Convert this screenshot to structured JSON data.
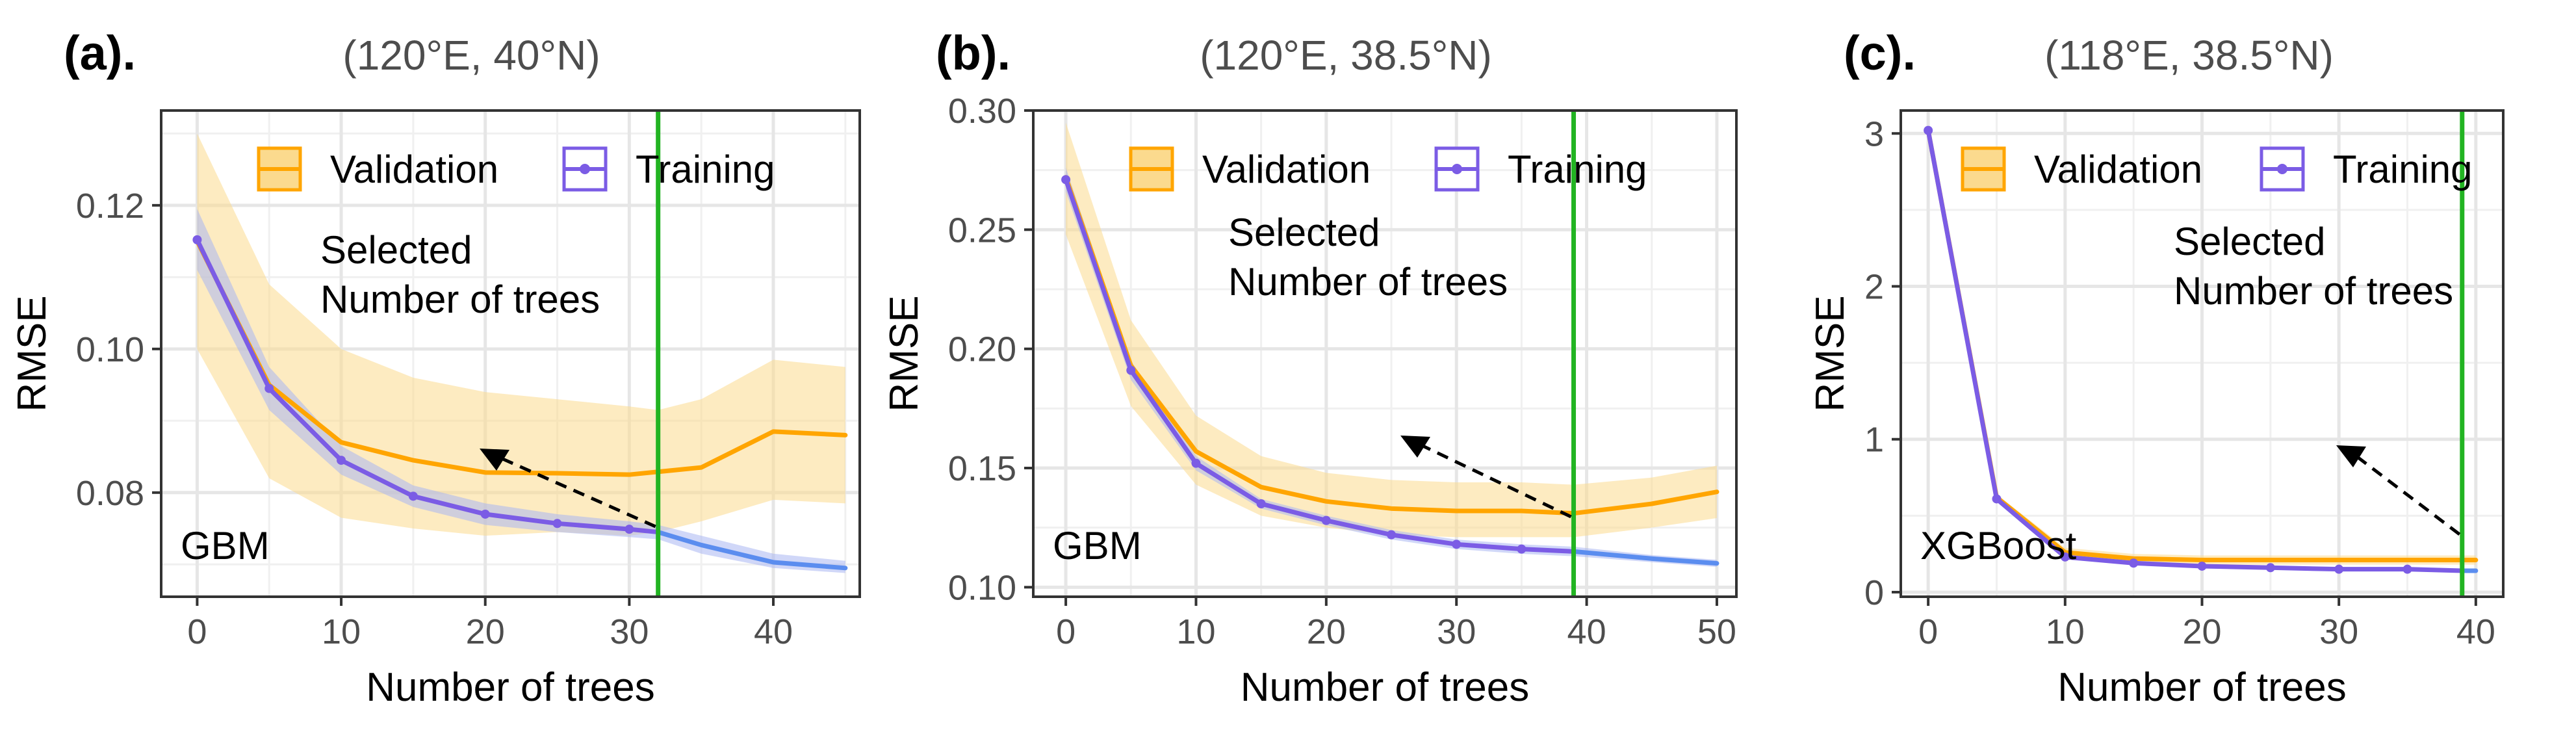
{
  "chart_data": [
    {
      "type": "line",
      "panel_label": "(a).",
      "title": "(120°E, 40°N)",
      "model": "GBM",
      "xlabel": "Number of trees",
      "ylabel": "RMSE",
      "xlim": [
        -2.5,
        46
      ],
      "ylim": [
        0.0655,
        0.1332
      ],
      "xticks": [
        0,
        10,
        20,
        30,
        40
      ],
      "yticks": [
        0.08,
        0.1,
        0.12
      ],
      "ytick_labels": [
        "0.08",
        "0.10",
        "0.12"
      ],
      "selected_trees": 32,
      "annotation": [
        "Selected",
        "Number of trees"
      ],
      "legend": [
        "Validation",
        "Training"
      ],
      "series": [
        {
          "name": "Validation",
          "color": "#FFA500",
          "x": [
            0,
            5,
            10,
            15,
            20,
            25,
            30,
            32,
            35,
            40,
            45
          ],
          "y": [
            0.115,
            0.095,
            0.087,
            0.0845,
            0.0828,
            0.0827,
            0.0825,
            0.0829,
            0.0835,
            0.0885,
            0.088
          ],
          "lower": [
            0.1,
            0.082,
            0.0765,
            0.075,
            0.074,
            0.0745,
            0.074,
            0.0745,
            0.076,
            0.079,
            0.0785
          ],
          "upper": [
            0.13,
            0.109,
            0.1,
            0.096,
            0.094,
            0.093,
            0.092,
            0.0915,
            0.093,
            0.0985,
            0.0975
          ]
        },
        {
          "name": "Training",
          "color": "#7B5CE5",
          "x": [
            0,
            5,
            10,
            15,
            20,
            25,
            30,
            32
          ],
          "y": [
            0.1152,
            0.0945,
            0.0845,
            0.0795,
            0.077,
            0.0757,
            0.0749,
            0.0745
          ],
          "lower": [
            0.111,
            0.0915,
            0.0825,
            0.078,
            0.0755,
            0.0745,
            0.0738,
            0.0735
          ],
          "upper": [
            0.1195,
            0.0975,
            0.0865,
            0.081,
            0.0785,
            0.077,
            0.076,
            0.0755
          ]
        },
        {
          "name": "Training (beyond selection)",
          "color": "#5B8DEF",
          "x": [
            32,
            35,
            40,
            45
          ],
          "y": [
            0.0745,
            0.0727,
            0.0703,
            0.0695
          ],
          "lower": [
            0.0735,
            0.0715,
            0.0695,
            0.0688
          ],
          "upper": [
            0.0755,
            0.074,
            0.0715,
            0.0705
          ]
        }
      ]
    },
    {
      "type": "line",
      "panel_label": "(b).",
      "title": "(120°E, 38.5°N)",
      "model": "GBM",
      "xlabel": "Number of trees",
      "ylabel": "RMSE",
      "xlim": [
        -2.5,
        51.5
      ],
      "ylim": [
        0.096,
        0.3
      ],
      "xticks": [
        0,
        10,
        20,
        30,
        40,
        50
      ],
      "yticks": [
        0.1,
        0.15,
        0.2,
        0.25,
        0.3
      ],
      "ytick_labels": [
        "0.10",
        "0.15",
        "0.20",
        "0.25",
        "0.30"
      ],
      "selected_trees": 39,
      "annotation": [
        "Selected",
        "Number of trees"
      ],
      "legend": [
        "Validation",
        "Training"
      ],
      "series": [
        {
          "name": "Validation",
          "color": "#FFA500",
          "x": [
            0,
            5,
            10,
            15,
            20,
            25,
            30,
            35,
            39,
            45,
            50
          ],
          "y": [
            0.272,
            0.193,
            0.157,
            0.142,
            0.136,
            0.133,
            0.132,
            0.132,
            0.131,
            0.135,
            0.14
          ],
          "lower": [
            0.248,
            0.176,
            0.143,
            0.13,
            0.125,
            0.122,
            0.121,
            0.121,
            0.121,
            0.125,
            0.129
          ],
          "upper": [
            0.295,
            0.212,
            0.172,
            0.155,
            0.148,
            0.145,
            0.144,
            0.144,
            0.143,
            0.146,
            0.151
          ]
        },
        {
          "name": "Training",
          "color": "#7B5CE5",
          "x": [
            0,
            5,
            10,
            15,
            20,
            25,
            30,
            35,
            39
          ],
          "y": [
            0.271,
            0.191,
            0.152,
            0.135,
            0.128,
            0.122,
            0.118,
            0.116,
            0.115
          ],
          "lower": [
            0.266,
            0.187,
            0.149,
            0.133,
            0.126,
            0.12,
            0.116,
            0.114,
            0.113
          ],
          "upper": [
            0.276,
            0.195,
            0.155,
            0.137,
            0.13,
            0.124,
            0.12,
            0.118,
            0.117
          ]
        },
        {
          "name": "Training (beyond selection)",
          "color": "#5B8DEF",
          "x": [
            39,
            45,
            50
          ],
          "y": [
            0.115,
            0.112,
            0.11
          ],
          "lower": [
            0.113,
            0.1105,
            0.1085
          ],
          "upper": [
            0.117,
            0.1135,
            0.1115
          ]
        }
      ]
    },
    {
      "type": "line",
      "panel_label": "(c).",
      "title": "(118°E, 38.5°N)",
      "model": "XGBoost",
      "xlabel": "Number of trees",
      "ylabel": "RMSE",
      "xlim": [
        -2,
        42
      ],
      "ylim": [
        -0.03,
        3.15
      ],
      "xticks": [
        0,
        10,
        20,
        30,
        40
      ],
      "yticks": [
        0,
        1,
        2,
        3
      ],
      "ytick_labels": [
        "0",
        "1",
        "2",
        "3"
      ],
      "selected_trees": 39,
      "annotation": [
        "Selected",
        "Number of trees"
      ],
      "legend": [
        "Validation",
        "Training"
      ],
      "series": [
        {
          "name": "Validation",
          "color": "#FFA500",
          "x": [
            0,
            5,
            10,
            15,
            20,
            25,
            30,
            35,
            40
          ],
          "y": [
            3.02,
            0.62,
            0.26,
            0.22,
            0.21,
            0.21,
            0.21,
            0.21,
            0.21
          ],
          "lower": [
            3.0,
            0.6,
            0.23,
            0.19,
            0.18,
            0.18,
            0.18,
            0.18,
            0.18
          ],
          "upper": [
            3.04,
            0.64,
            0.29,
            0.25,
            0.24,
            0.24,
            0.24,
            0.24,
            0.24
          ]
        },
        {
          "name": "Training",
          "color": "#7B5CE5",
          "x": [
            0,
            5,
            10,
            15,
            20,
            25,
            30,
            35,
            39
          ],
          "y": [
            3.02,
            0.61,
            0.23,
            0.19,
            0.17,
            0.16,
            0.15,
            0.15,
            0.14
          ],
          "lower": [
            3.01,
            0.6,
            0.22,
            0.18,
            0.16,
            0.15,
            0.14,
            0.14,
            0.13
          ],
          "upper": [
            3.03,
            0.62,
            0.24,
            0.2,
            0.18,
            0.17,
            0.16,
            0.16,
            0.15
          ]
        },
        {
          "name": "Training (beyond selection)",
          "color": "#5B8DEF",
          "x": [
            39,
            40
          ],
          "y": [
            0.14,
            0.14
          ],
          "lower": [
            0.13,
            0.13
          ],
          "upper": [
            0.15,
            0.15
          ]
        }
      ]
    }
  ],
  "colors": {
    "validation": "#FFA500",
    "validation_band": "#FBDA8E",
    "training": "#7B5CE5",
    "training_band": "#A9B6F2",
    "training_extension": "#5B8DEF",
    "selected_line": "#22B422",
    "grid": "#E6E6E6",
    "panel_border": "#333333"
  }
}
